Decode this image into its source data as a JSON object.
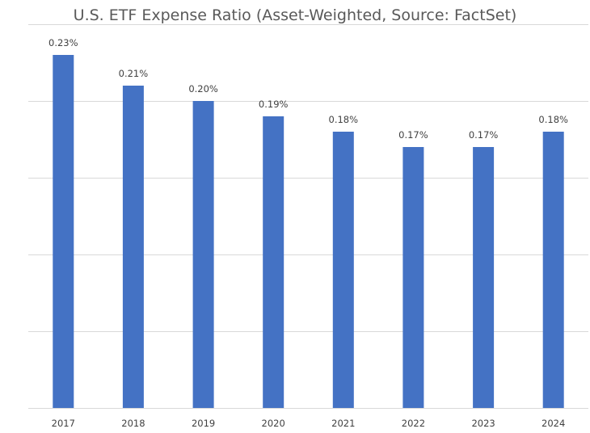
{
  "chart_data": {
    "type": "bar",
    "title": "U.S. ETF Expense Ratio (Asset-Weighted, Source: FactSet)",
    "xlabel": "",
    "ylabel": "",
    "categories": [
      "2017",
      "2018",
      "2019",
      "2020",
      "2021",
      "2022",
      "2023",
      "2024"
    ],
    "values": [
      0.23,
      0.21,
      0.2,
      0.19,
      0.18,
      0.17,
      0.17,
      0.18
    ],
    "data_labels": [
      "0.23%",
      "0.21%",
      "0.20%",
      "0.19%",
      "0.18%",
      "0.17%",
      "0.17%",
      "0.18%"
    ],
    "ylim": [
      0,
      0.25
    ],
    "y_gridlines": [
      0.05,
      0.1,
      0.15,
      0.2,
      0.25
    ],
    "y_tick_labels_visible": false,
    "grid": true,
    "legend": "none",
    "bar_color": "#4472c4"
  }
}
